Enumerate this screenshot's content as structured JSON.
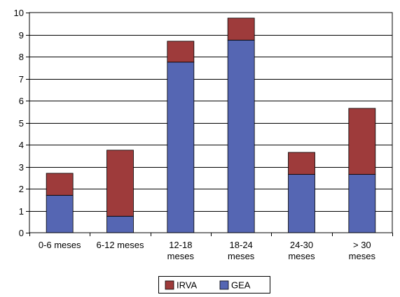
{
  "chart_data": {
    "type": "bar",
    "stacked": true,
    "categories": [
      "0-6 meses",
      "6-12 meses",
      "12-18 meses",
      "18-24 meses",
      "24-30 meses",
      "> 30 meses"
    ],
    "category_lines": [
      [
        "0-6 meses"
      ],
      [
        "6-12 meses"
      ],
      [
        "12-18",
        "meses"
      ],
      [
        "18-24",
        "meses"
      ],
      [
        "24-30",
        "meses"
      ],
      [
        "> 30",
        "meses"
      ]
    ],
    "series": [
      {
        "name": "GEA",
        "color": "#5566B3",
        "values": [
          1.7,
          0.75,
          7.75,
          8.75,
          2.65,
          2.65
        ]
      },
      {
        "name": "IRVA",
        "color": "#9E3B3B",
        "values": [
          1.0,
          3.0,
          0.95,
          1.0,
          1.0,
          3.0
        ]
      }
    ],
    "legend_order": [
      "IRVA",
      "GEA"
    ],
    "ylim": [
      0,
      10
    ],
    "yticks": [
      0,
      1,
      2,
      3,
      4,
      5,
      6,
      7,
      8,
      9,
      10
    ],
    "grid": true,
    "legend_position": "bottom-center",
    "title": "",
    "xlabel": "",
    "ylabel": ""
  }
}
